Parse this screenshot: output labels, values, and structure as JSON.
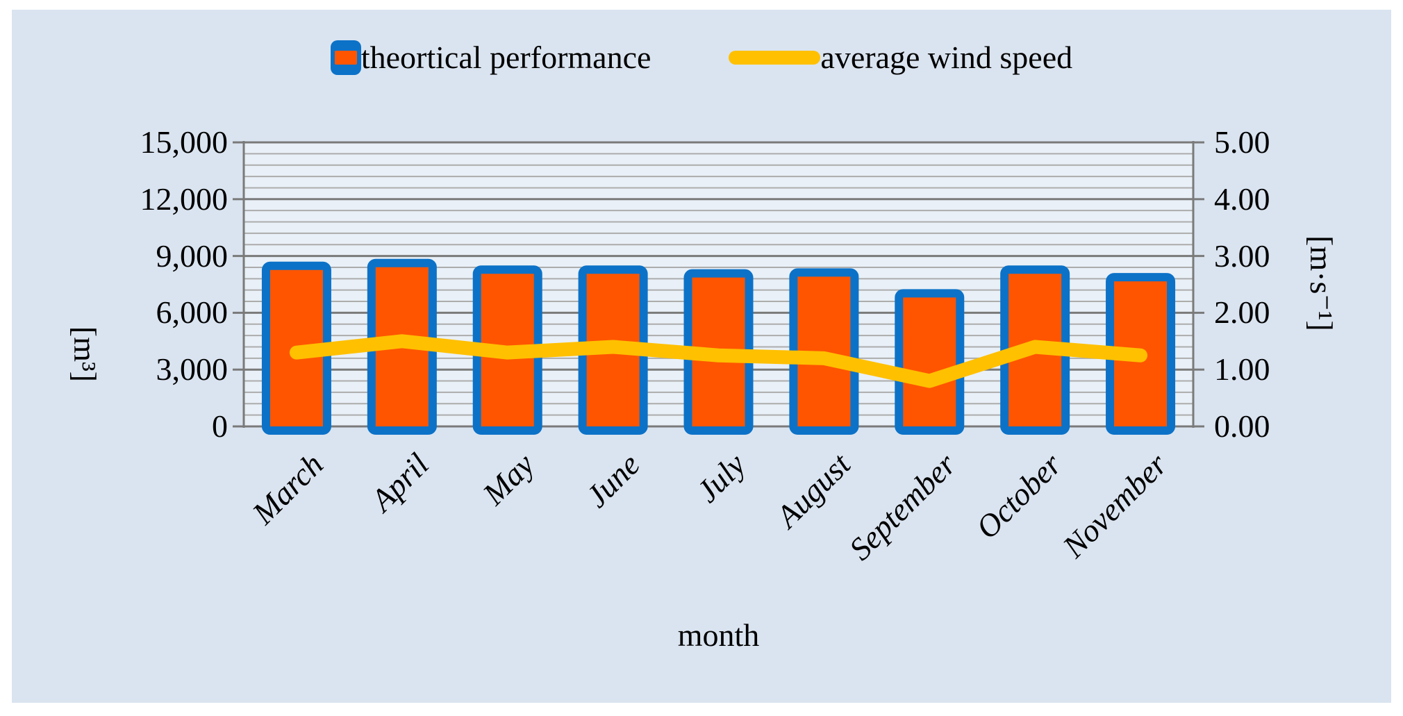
{
  "colors": {
    "page_bg": "#ffffff",
    "chart_bg": "#dae4f0",
    "plot_bg": "#e9f0f7",
    "grid_minor": "#acacac",
    "grid_major": "#7a7a7a",
    "bar_fill": "#ff5500",
    "bar_stroke": "#0c72c8",
    "line_color": "#ffc000",
    "text_color": "#000000"
  },
  "chart_data": {
    "type": "bar+line",
    "categories": [
      "March",
      "April",
      "May",
      "June",
      "July",
      "August",
      "September",
      "October",
      "November"
    ],
    "series": [
      {
        "name": "theortical performance",
        "type": "bar",
        "axis": "left",
        "values": [
          8700,
          8850,
          8500,
          8500,
          8300,
          8350,
          7250,
          8500,
          8100
        ]
      },
      {
        "name": "average wind speed",
        "type": "line",
        "axis": "right",
        "values": [
          1.3,
          1.5,
          1.3,
          1.4,
          1.25,
          1.2,
          0.8,
          1.4,
          1.25
        ]
      }
    ],
    "left_axis": {
      "title": "[m³]",
      "min": 0,
      "max": 15000,
      "major_step": 3000,
      "minor_step": 600,
      "tick_labels": [
        "0",
        "3,000",
        "6,000",
        "9,000",
        "12,000",
        "15,000"
      ]
    },
    "right_axis": {
      "title": "[m·s⁻¹]",
      "min": 0,
      "max": 5,
      "major_step": 1,
      "tick_labels": [
        "0.00",
        "1.00",
        "2.00",
        "3.00",
        "4.00",
        "5.00"
      ]
    },
    "x_axis": {
      "title": "month"
    },
    "legend": {
      "position": "top",
      "items": [
        "theortical performance",
        "average wind speed"
      ]
    },
    "grid": {
      "major": true,
      "minor": true
    }
  }
}
